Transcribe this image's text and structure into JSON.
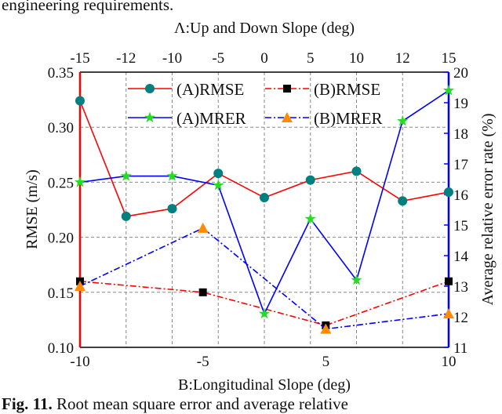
{
  "top_text": "engineering requirements.",
  "caption": {
    "label": "Fig. 11.",
    "text": "Root mean square error and average relative"
  },
  "chart_data": {
    "type": "line",
    "top_axis": {
      "label": "Λ:Up and Down Slope (deg)",
      "ticks": [
        "-15",
        "-12",
        "-10",
        "-5",
        "0",
        "5",
        "10",
        "12",
        "15"
      ]
    },
    "bottom_axis": {
      "label": "B:Longitudinal Slope (deg)",
      "ticks": [
        "-10",
        "-5",
        "5",
        "10"
      ]
    },
    "left_axis": {
      "label": "RMSE (m/s)",
      "range": [
        0.1,
        0.35
      ],
      "ticks": [
        "0.10",
        "0.15",
        "0.20",
        "0.25",
        "0.30",
        "0.35"
      ],
      "color": "#ff0000"
    },
    "right_axis": {
      "label": "Average relative error rate (%)",
      "range": [
        11,
        20
      ],
      "ticks": [
        "11",
        "12",
        "13",
        "14",
        "15",
        "16",
        "17",
        "18",
        "19",
        "20"
      ],
      "color": "#0000ff"
    },
    "grid": true,
    "legend_placement": "top",
    "series": [
      {
        "name": "(A)RMSE",
        "x_axis": "top",
        "y_axis": "left",
        "x": [
          "-15",
          "-12",
          "-10",
          "-5",
          "0",
          "5",
          "10",
          "12",
          "15"
        ],
        "values": [
          0.324,
          0.219,
          0.226,
          0.258,
          0.236,
          0.252,
          0.26,
          0.233,
          0.241
        ],
        "line_color": "#ff0000",
        "marker_color": "#008080",
        "marker": "circle",
        "dash": "solid"
      },
      {
        "name": "(B)RMSE",
        "x_axis": "bottom",
        "y_axis": "left",
        "x": [
          "-10",
          "-5",
          "5",
          "10"
        ],
        "values": [
          0.16,
          0.15,
          0.12,
          0.16
        ],
        "line_color": "#ff0000",
        "marker_color": "#000000",
        "marker": "square",
        "dash": "dashdot"
      },
      {
        "name": "(A)MRER",
        "x_axis": "top",
        "y_axis": "right",
        "x": [
          "-15",
          "-12",
          "-10",
          "-5",
          "0",
          "5",
          "10",
          "12",
          "15"
        ],
        "values": [
          16.4,
          16.6,
          16.6,
          16.3,
          12.1,
          15.2,
          13.2,
          18.4,
          19.4
        ],
        "line_color": "#0000ff",
        "marker_color": "#22dd22",
        "marker": "star",
        "dash": "solid"
      },
      {
        "name": "(B)MRER",
        "x_axis": "bottom",
        "y_axis": "right",
        "x": [
          "-10",
          "-5",
          "5",
          "10"
        ],
        "values": [
          13.0,
          14.9,
          11.6,
          12.1
        ],
        "line_color": "#0000ff",
        "marker_color": "#ff8c00",
        "marker": "triangle",
        "dash": "dashdot"
      }
    ]
  }
}
